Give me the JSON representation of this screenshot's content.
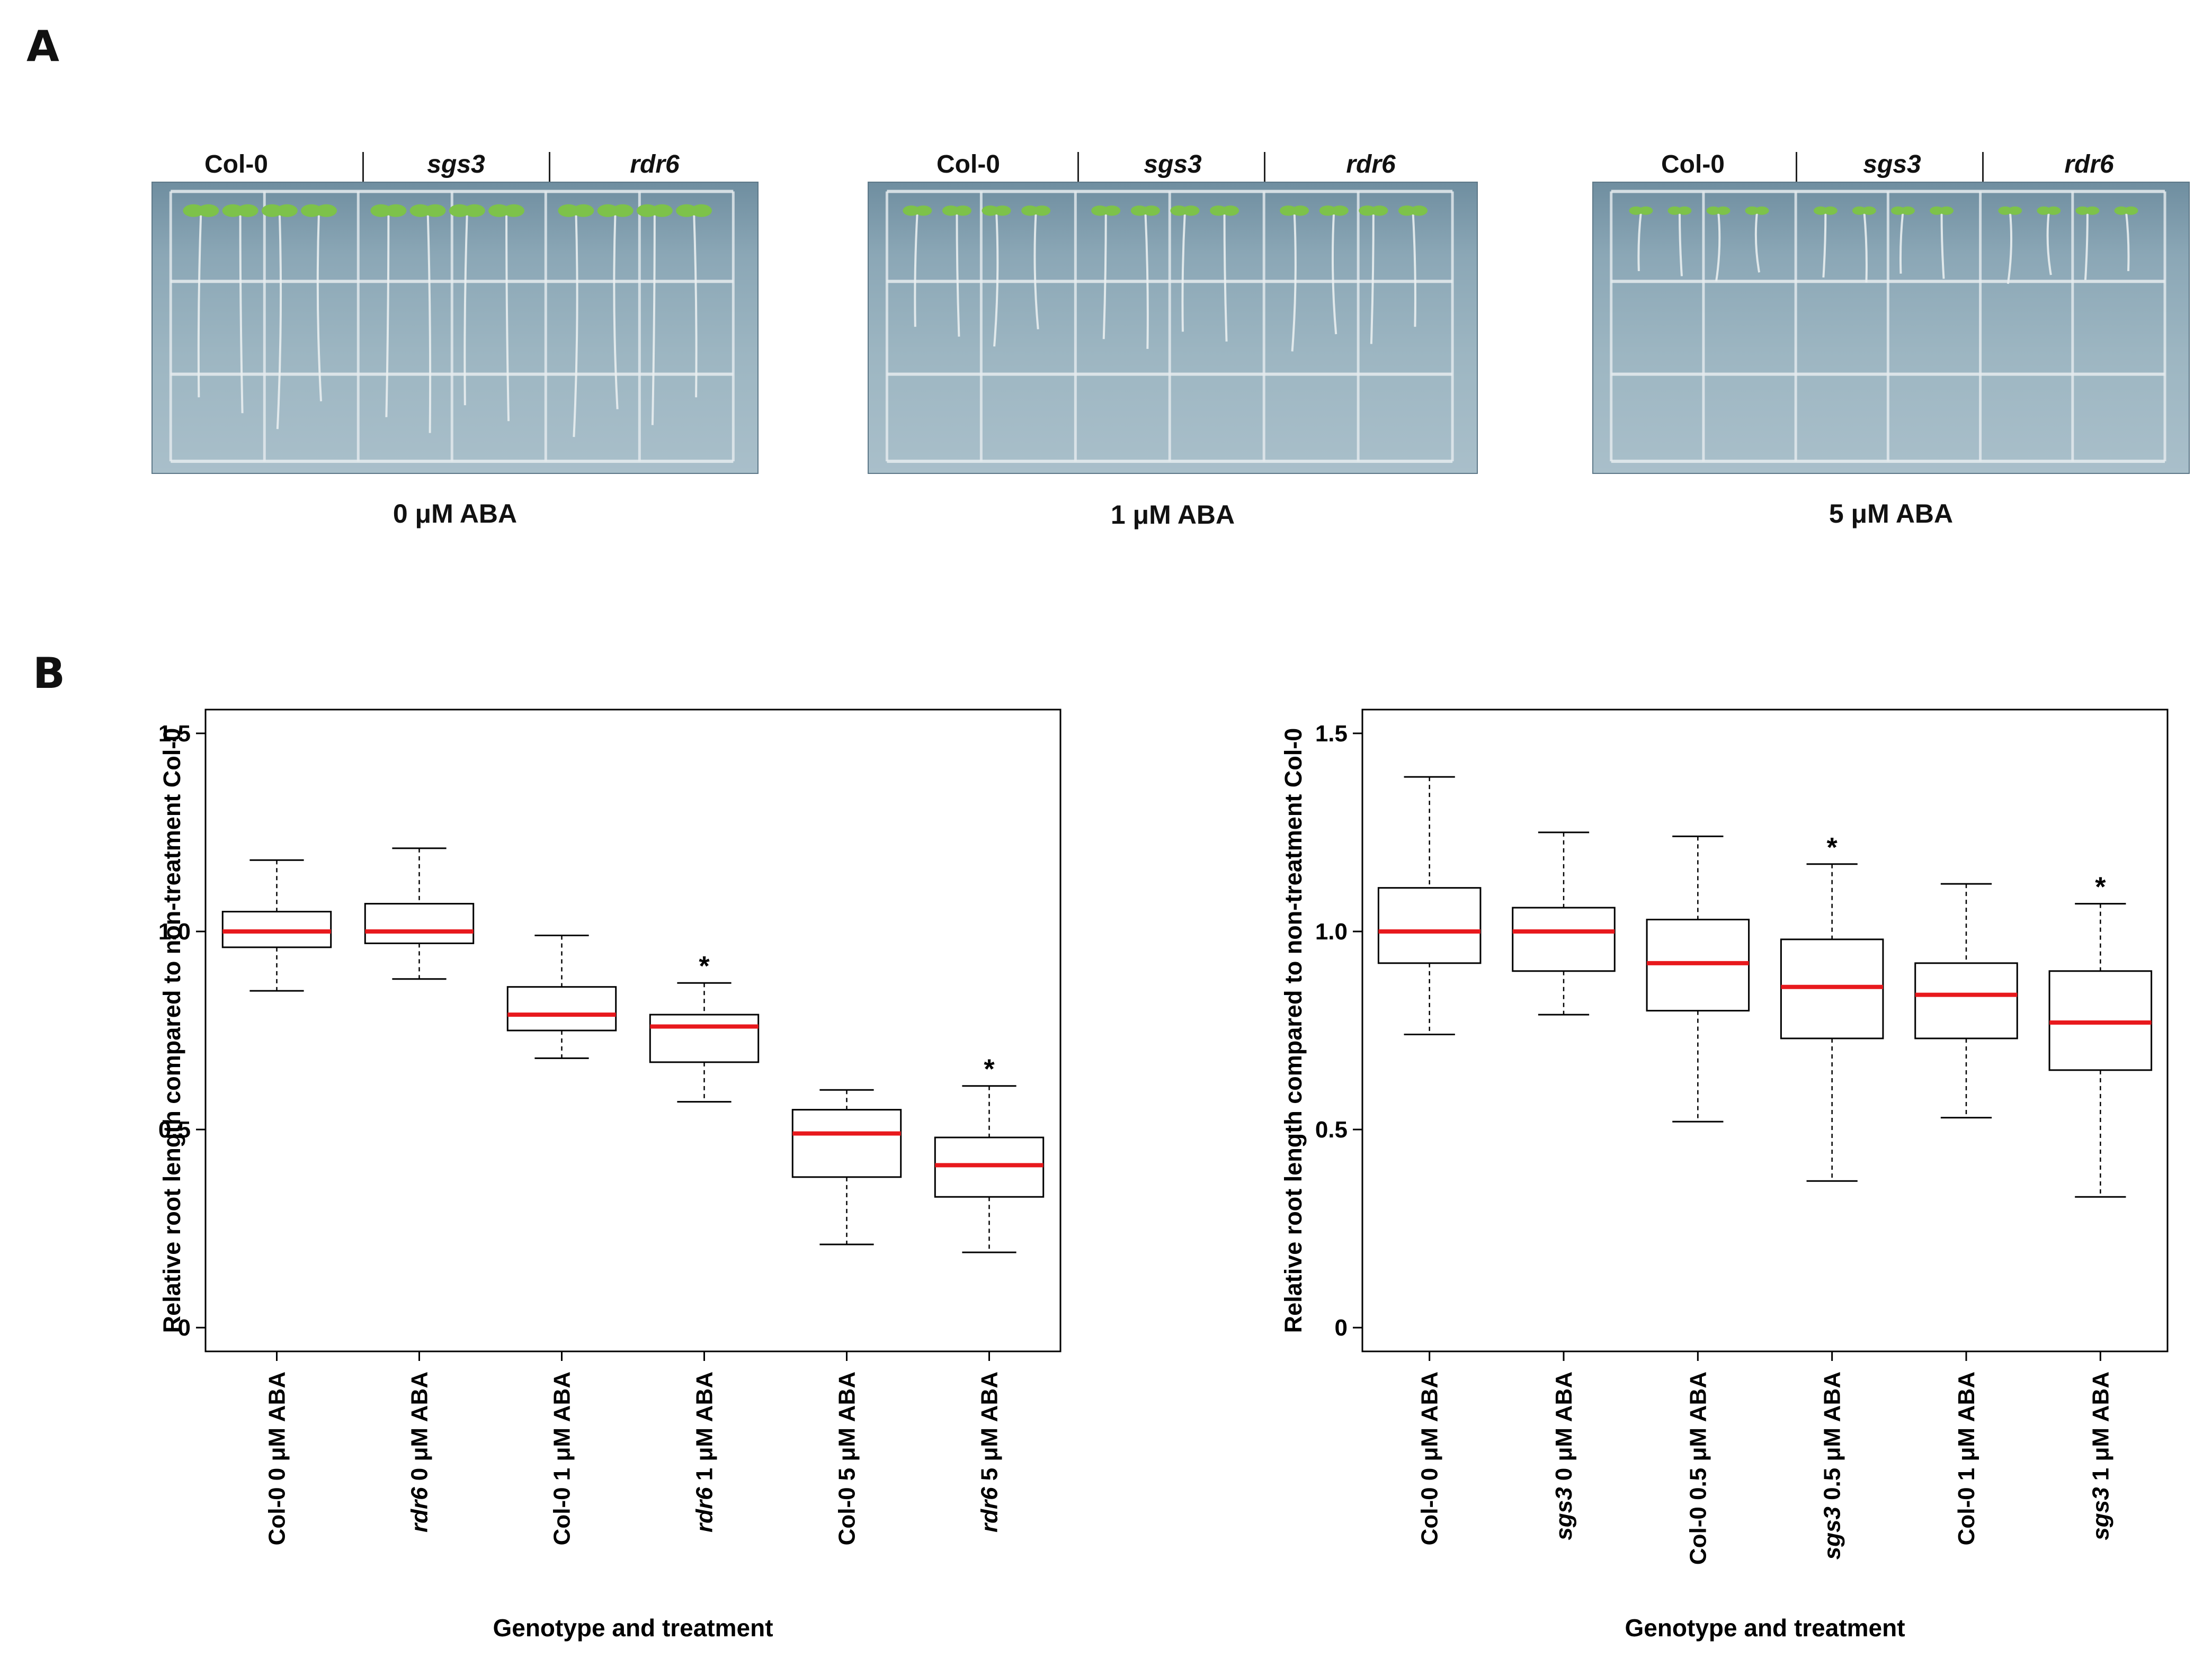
{
  "panels": {
    "a_label": "A",
    "b_label": "B"
  },
  "plates": [
    {
      "genotypes": [
        "Col-0",
        "sgs3",
        "rdr6"
      ],
      "caption": "0 μM ABA",
      "seedling_count": 12,
      "root_length_rel": 1.0
    },
    {
      "genotypes": [
        "Col-0",
        "sgs3",
        "rdr6"
      ],
      "caption": "1 μM ABA",
      "seedling_count": 12,
      "root_length_rel": 0.62
    },
    {
      "genotypes": [
        "Col-0",
        "sgs3",
        "rdr6"
      ],
      "caption": "5 μM ABA",
      "seedling_count": 12,
      "root_length_rel": 0.32
    }
  ],
  "colors": {
    "median": "#e8191d",
    "box": "#000000",
    "plate_grid": "#e6ecef",
    "seedling_leaf": "#7dc24a",
    "seedling_root": "#e9eef0"
  },
  "chart_data": [
    {
      "type": "boxplot",
      "title": "",
      "xlabel": "Genotype and treatment",
      "ylabel": "Relative root length compared to non-treatment Col-0",
      "ylim": [
        -0.06,
        1.56
      ],
      "yticks": [
        0,
        0.5,
        1.0,
        1.5
      ],
      "ytick_labels": [
        "0",
        "0.5",
        "1.0",
        "1.5"
      ],
      "categories": [
        {
          "genotype": "Col-0",
          "italic": false,
          "treatment": "0 μM ABA"
        },
        {
          "genotype": "rdr6",
          "italic": true,
          "treatment": "0 μM ABA"
        },
        {
          "genotype": "Col-0",
          "italic": false,
          "treatment": "1 μM ABA"
        },
        {
          "genotype": "rdr6",
          "italic": true,
          "treatment": "1 μM ABA"
        },
        {
          "genotype": "Col-0",
          "italic": false,
          "treatment": "5 μM ABA"
        },
        {
          "genotype": "rdr6",
          "italic": true,
          "treatment": "5 μM ABA"
        }
      ],
      "boxes": [
        {
          "min": 0.85,
          "q1": 0.96,
          "median": 1.0,
          "q3": 1.05,
          "max": 1.18,
          "significant": false
        },
        {
          "min": 0.88,
          "q1": 0.97,
          "median": 1.0,
          "q3": 1.07,
          "max": 1.21,
          "significant": false
        },
        {
          "min": 0.68,
          "q1": 0.75,
          "median": 0.79,
          "q3": 0.86,
          "max": 0.99,
          "significant": false
        },
        {
          "min": 0.57,
          "q1": 0.67,
          "median": 0.76,
          "q3": 0.79,
          "max": 0.87,
          "significant": true
        },
        {
          "min": 0.21,
          "q1": 0.38,
          "median": 0.49,
          "q3": 0.55,
          "max": 0.6,
          "significant": false
        },
        {
          "min": 0.19,
          "q1": 0.33,
          "median": 0.41,
          "q3": 0.48,
          "max": 0.61,
          "significant": true
        }
      ],
      "significance_marker": "*"
    },
    {
      "type": "boxplot",
      "title": "",
      "xlabel": "Genotype and treatment",
      "ylabel": "Relative root length compared to non-treatment Col-0",
      "ylim": [
        -0.06,
        1.56
      ],
      "yticks": [
        0,
        0.5,
        1.0,
        1.5
      ],
      "ytick_labels": [
        "0",
        "0.5",
        "1.0",
        "1.5"
      ],
      "categories": [
        {
          "genotype": "Col-0",
          "italic": false,
          "treatment": "0 μM ABA"
        },
        {
          "genotype": "sgs3",
          "italic": true,
          "treatment": "0 μM ABA"
        },
        {
          "genotype": "Col-0",
          "italic": false,
          "treatment": "0.5 μM ABA"
        },
        {
          "genotype": "sgs3",
          "italic": true,
          "treatment": "0.5 μM ABA"
        },
        {
          "genotype": "Col-0",
          "italic": false,
          "treatment": "1 μM ABA"
        },
        {
          "genotype": "sgs3",
          "italic": true,
          "treatment": "1 μM ABA"
        }
      ],
      "boxes": [
        {
          "min": 0.74,
          "q1": 0.92,
          "median": 1.0,
          "q3": 1.11,
          "max": 1.39,
          "significant": false
        },
        {
          "min": 0.79,
          "q1": 0.9,
          "median": 1.0,
          "q3": 1.06,
          "max": 1.25,
          "significant": false
        },
        {
          "min": 0.52,
          "q1": 0.8,
          "median": 0.92,
          "q3": 1.03,
          "max": 1.24,
          "significant": false
        },
        {
          "min": 0.37,
          "q1": 0.73,
          "median": 0.86,
          "q3": 0.98,
          "max": 1.17,
          "significant": true
        },
        {
          "min": 0.53,
          "q1": 0.73,
          "median": 0.84,
          "q3": 0.92,
          "max": 1.12,
          "significant": false
        },
        {
          "min": 0.33,
          "q1": 0.65,
          "median": 0.77,
          "q3": 0.9,
          "max": 1.07,
          "significant": true
        }
      ],
      "significance_marker": "*"
    }
  ]
}
